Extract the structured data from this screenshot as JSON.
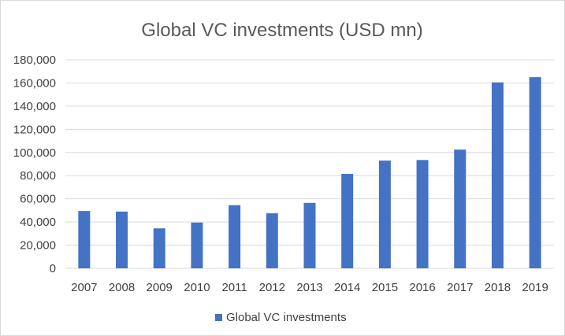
{
  "chart_data": {
    "type": "bar",
    "title": "Global VC investments (USD mn)",
    "xlabel": "",
    "ylabel": "",
    "categories": [
      "2007",
      "2008",
      "2009",
      "2010",
      "2011",
      "2012",
      "2013",
      "2014",
      "2015",
      "2016",
      "2017",
      "2018",
      "2019"
    ],
    "series": [
      {
        "name": "Global VC investments",
        "color": "#4472C4",
        "values": [
          49500,
          49000,
          34500,
          39500,
          54500,
          47500,
          56500,
          81500,
          93000,
          93500,
          102500,
          160500,
          165000
        ]
      }
    ],
    "ylim": [
      0,
      180000
    ],
    "yticks": [
      0,
      20000,
      40000,
      60000,
      80000,
      100000,
      120000,
      140000,
      160000,
      180000
    ],
    "ytick_labels": [
      "0",
      "20,000",
      "40,000",
      "60,000",
      "80,000",
      "100,000",
      "120,000",
      "140,000",
      "160,000",
      "180,000"
    ],
    "grid": true,
    "legend_position": "bottom"
  }
}
